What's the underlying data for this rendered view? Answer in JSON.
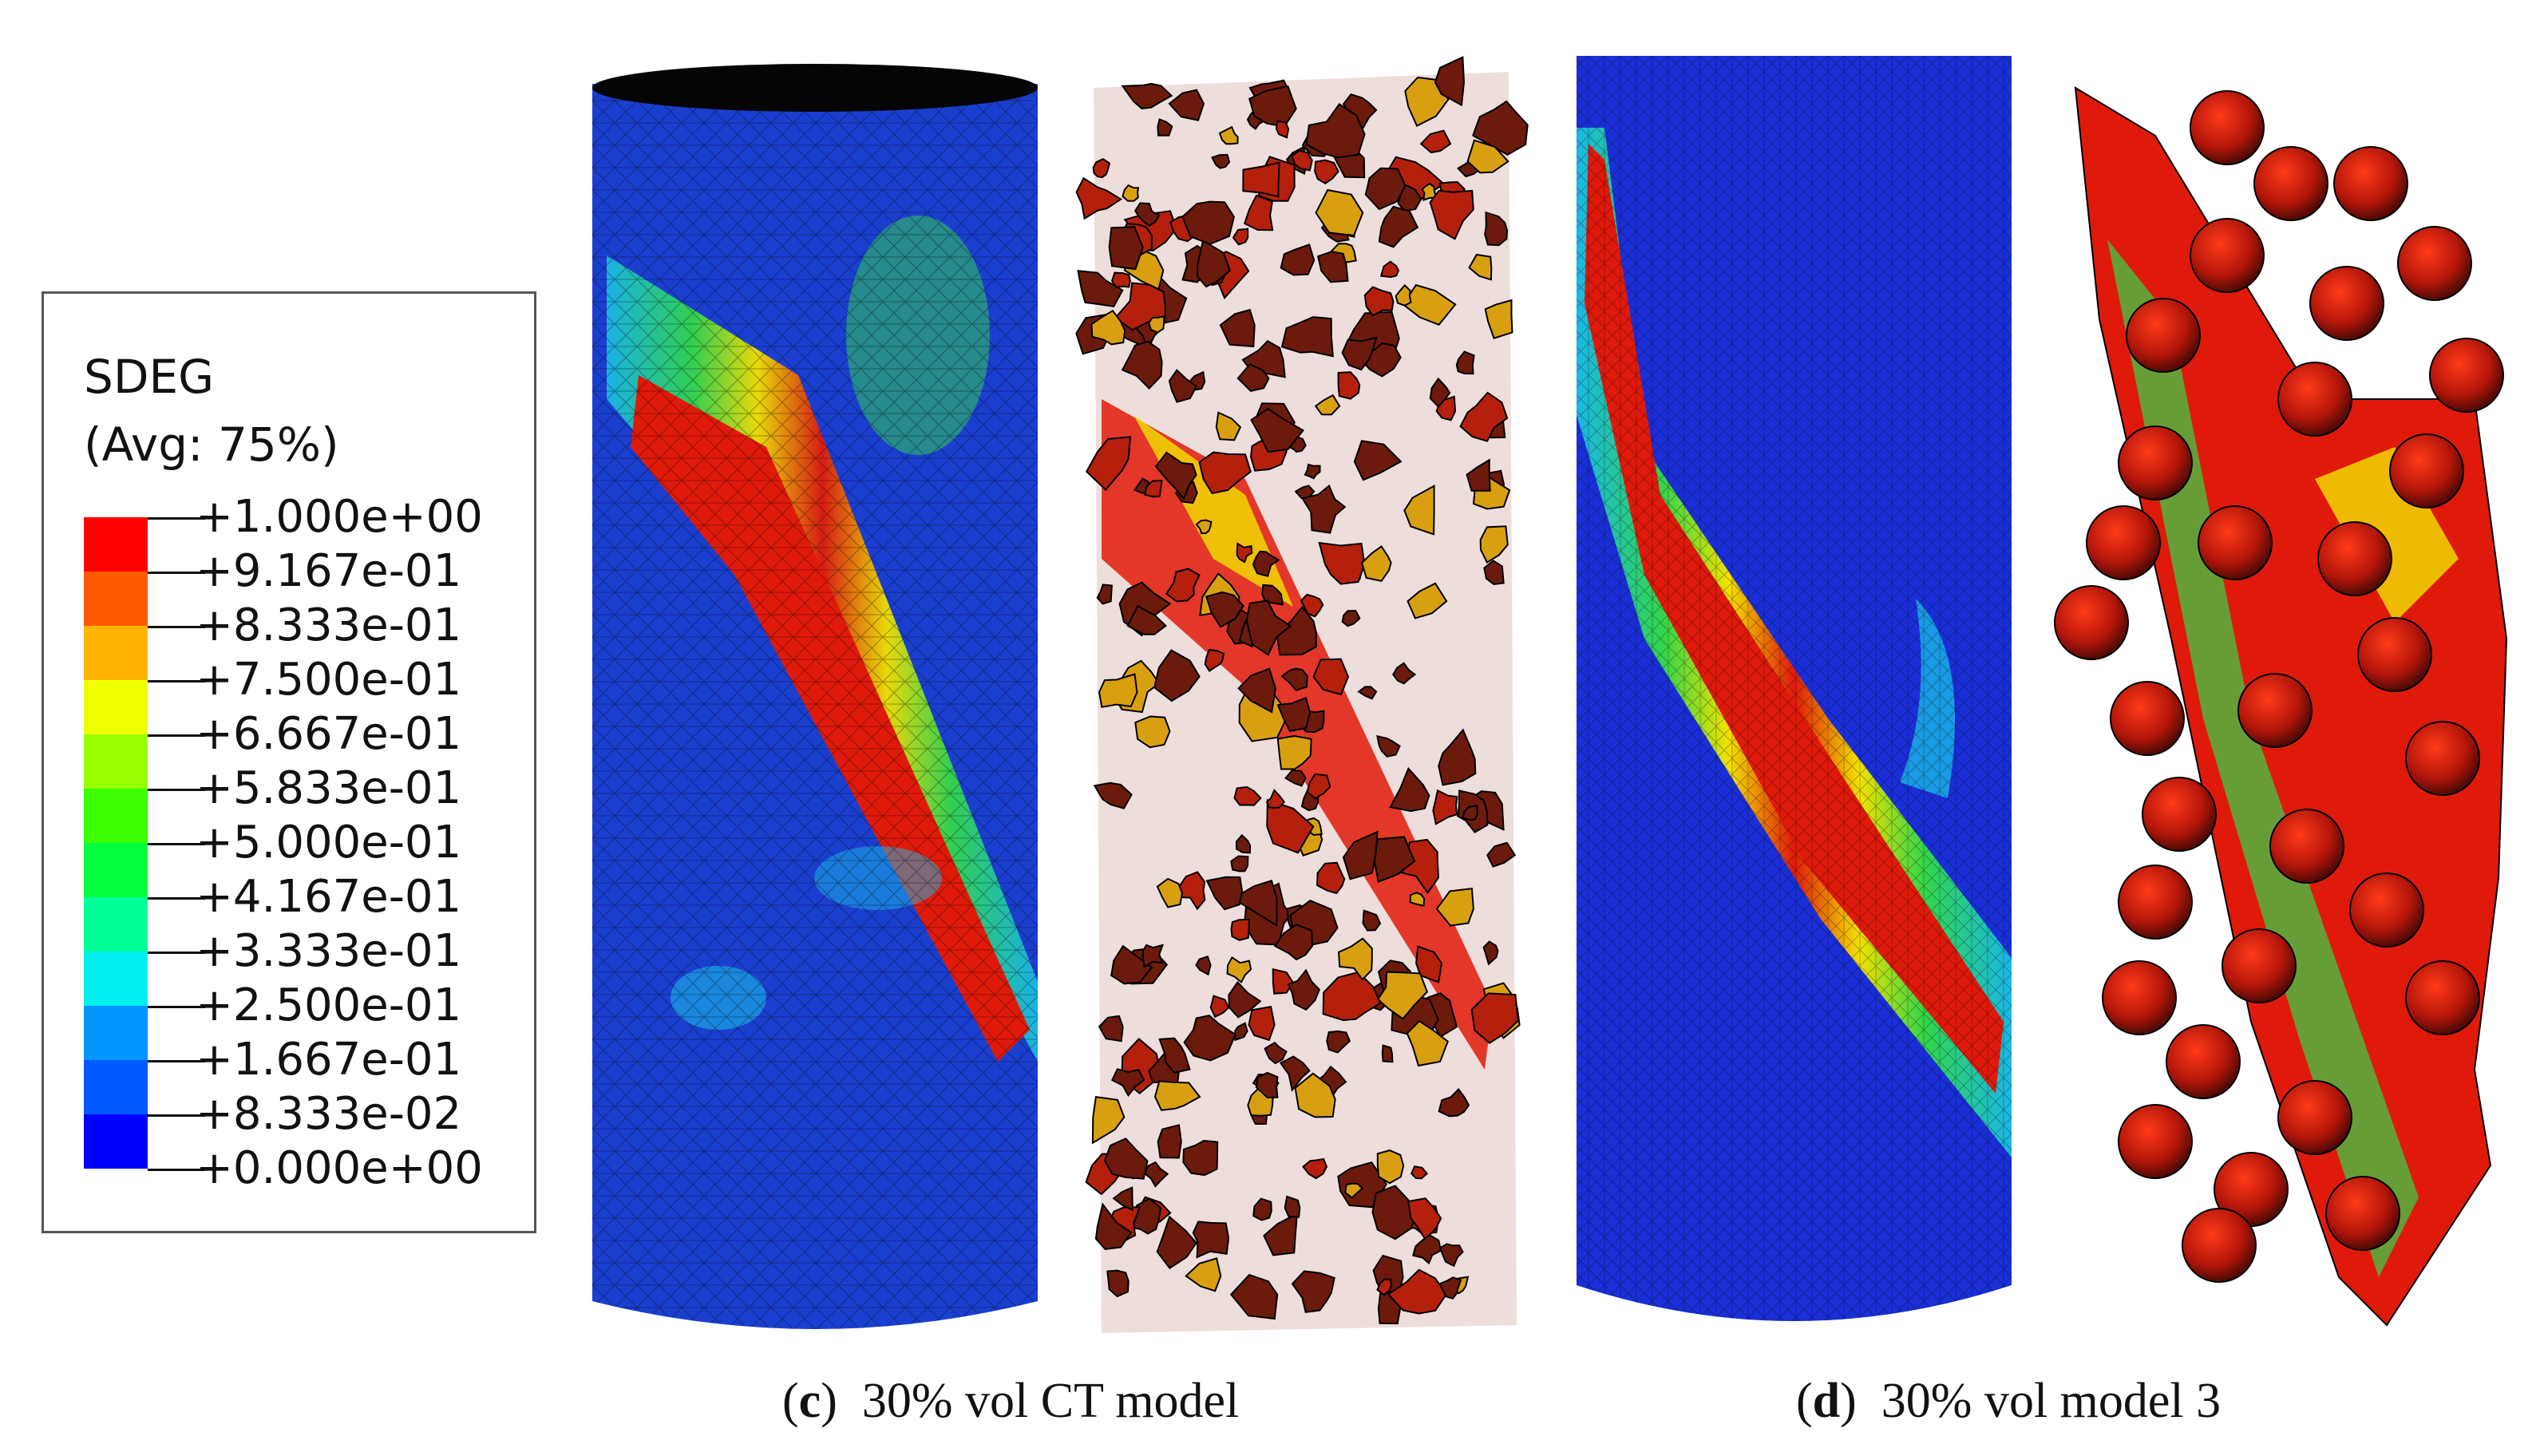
{
  "legend": {
    "title": "SDEG",
    "subtitle": "(Avg: 75%)",
    "entries": [
      {
        "label": "+1.000e+00",
        "color": "#ff0000"
      },
      {
        "label": "+9.167e-01",
        "color": "#ff5a00"
      },
      {
        "label": "+8.333e-01",
        "color": "#ffb400"
      },
      {
        "label": "+7.500e-01",
        "color": "#f0ff00"
      },
      {
        "label": "+6.667e-01",
        "color": "#96ff00"
      },
      {
        "label": "+5.833e-01",
        "color": "#3cff00"
      },
      {
        "label": "+5.000e-01",
        "color": "#00ff3c"
      },
      {
        "label": "+4.167e-01",
        "color": "#00ff96"
      },
      {
        "label": "+3.333e-01",
        "color": "#00f0f0"
      },
      {
        "label": "+2.500e-01",
        "color": "#0096ff"
      },
      {
        "label": "+1.667e-01",
        "color": "#005aff"
      },
      {
        "label": "+8.333e-02",
        "color": "#0000ff"
      },
      {
        "label": "+0.000e+00",
        "color": ""
      }
    ]
  },
  "captions": {
    "c": {
      "letter": "c",
      "text": "30% vol CT model"
    },
    "d": {
      "letter": "d",
      "text": "30% vol model 3"
    }
  },
  "colors": {
    "base_blue": "#1a2fd8",
    "band_red": "#e01a0a",
    "band_orange": "#ff6a00",
    "band_yellow": "#f2e200",
    "band_green": "#33d64a",
    "band_cyan": "#1ab7e6",
    "mesh_line": "#000000",
    "particle_dark": "#6b1a0c"
  }
}
